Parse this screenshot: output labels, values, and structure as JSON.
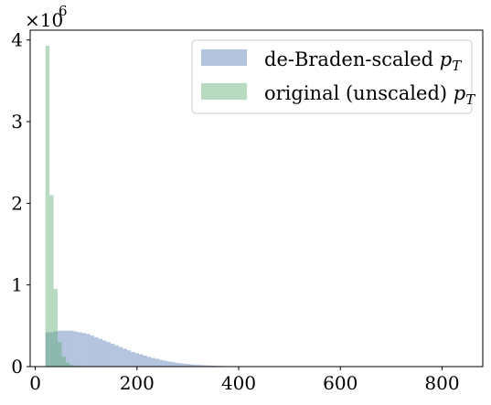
{
  "chart_data": {
    "type": "histogram",
    "xlim": [
      -10,
      880
    ],
    "ylim": [
      0,
      4.12
    ],
    "y_multiplier_label": "×10",
    "y_multiplier_exponent": "6",
    "x_ticks": [
      0,
      200,
      400,
      600,
      800
    ],
    "x_tick_labels": [
      "0",
      "200",
      "400",
      "600",
      "800"
    ],
    "y_ticks": [
      0,
      1,
      2,
      3,
      4
    ],
    "y_tick_labels": [
      "0",
      "1",
      "2",
      "3",
      "4"
    ],
    "grid": false,
    "legend_position": "top-right",
    "series": [
      {
        "name": "de-Braden-scaled p_T",
        "name_main": "de-Braden-scaled ",
        "name_var": "p",
        "name_sub": "T",
        "color": "#4c72b0",
        "opacity": 0.42,
        "bin_width": 8,
        "bins": [
          [
            20,
            0.42
          ],
          [
            28,
            0.42
          ],
          [
            36,
            0.43
          ],
          [
            44,
            0.44
          ],
          [
            52,
            0.44
          ],
          [
            60,
            0.44
          ],
          [
            68,
            0.44
          ],
          [
            76,
            0.43
          ],
          [
            84,
            0.42
          ],
          [
            92,
            0.41
          ],
          [
            100,
            0.4
          ],
          [
            108,
            0.38
          ],
          [
            116,
            0.36
          ],
          [
            124,
            0.34
          ],
          [
            132,
            0.32
          ],
          [
            140,
            0.3
          ],
          [
            148,
            0.28
          ],
          [
            156,
            0.26
          ],
          [
            164,
            0.24
          ],
          [
            172,
            0.22
          ],
          [
            180,
            0.2
          ],
          [
            188,
            0.18
          ],
          [
            196,
            0.165
          ],
          [
            204,
            0.15
          ],
          [
            212,
            0.135
          ],
          [
            220,
            0.12
          ],
          [
            228,
            0.105
          ],
          [
            236,
            0.095
          ],
          [
            244,
            0.082
          ],
          [
            252,
            0.072
          ],
          [
            260,
            0.062
          ],
          [
            268,
            0.054
          ],
          [
            276,
            0.046
          ],
          [
            284,
            0.04
          ],
          [
            292,
            0.034
          ],
          [
            300,
            0.029
          ],
          [
            308,
            0.025
          ],
          [
            316,
            0.021
          ],
          [
            324,
            0.018
          ],
          [
            332,
            0.015
          ],
          [
            340,
            0.013
          ],
          [
            348,
            0.011
          ],
          [
            356,
            0.009
          ],
          [
            364,
            0.008
          ],
          [
            372,
            0.006
          ],
          [
            380,
            0.005
          ],
          [
            388,
            0.004
          ],
          [
            396,
            0.0035
          ],
          [
            404,
            0.003
          ],
          [
            412,
            0.0025
          ],
          [
            420,
            0.002
          ],
          [
            428,
            0.0016
          ],
          [
            436,
            0.0013
          ],
          [
            444,
            0.001
          ],
          [
            452,
            0.0008
          ],
          [
            460,
            0.0006
          ],
          [
            468,
            0.0005
          ],
          [
            476,
            0.0004
          ],
          [
            484,
            0.0003
          ],
          [
            492,
            0.0002
          ]
        ]
      },
      {
        "name": "original (unscaled) p_T",
        "name_main": "original (unscaled) ",
        "name_var": "p",
        "name_sub": "T",
        "color": "#55a868",
        "opacity": 0.42,
        "bin_width": 8,
        "bins": [
          [
            20,
            3.93
          ],
          [
            28,
            2.1
          ],
          [
            36,
            0.95
          ],
          [
            44,
            0.3
          ],
          [
            52,
            0.12
          ],
          [
            60,
            0.05
          ],
          [
            68,
            0.02
          ],
          [
            76,
            0.008
          ],
          [
            84,
            0.003
          ]
        ]
      }
    ]
  }
}
